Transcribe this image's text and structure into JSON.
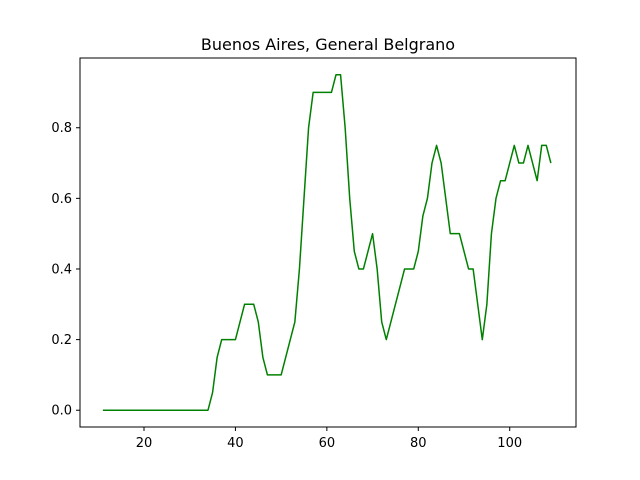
{
  "chart_data": {
    "type": "line",
    "title": "Buenos Aires, General Belgrano",
    "xlabel": "",
    "ylabel": "",
    "xlim": [
      6,
      114.5
    ],
    "ylim": [
      -0.0475,
      0.9975
    ],
    "x_ticks": [
      20,
      40,
      60,
      80,
      100
    ],
    "y_ticks": [
      0.0,
      0.2,
      0.4,
      0.6,
      0.8
    ],
    "x_tick_labels": [
      "20",
      "40",
      "60",
      "80",
      "100"
    ],
    "y_tick_labels": [
      "0.0",
      "0.2",
      "0.4",
      "0.6",
      "0.8"
    ],
    "grid": false,
    "legend": "none",
    "series": [
      {
        "color": "#008000",
        "x": [
          11,
          34,
          35,
          36,
          37,
          38,
          39,
          40,
          41,
          42,
          43,
          44,
          45,
          46,
          47,
          48,
          49,
          50,
          51,
          52,
          53,
          54,
          55,
          56,
          57,
          58,
          59,
          60,
          61,
          62,
          63,
          64,
          65,
          66,
          67,
          68,
          69,
          70,
          71,
          72,
          73,
          74,
          75,
          76,
          77,
          78,
          79,
          80,
          81,
          82,
          83,
          84,
          85,
          86,
          87,
          88,
          89,
          90,
          91,
          92,
          93,
          94,
          95,
          96,
          97,
          98,
          99,
          100,
          101,
          102,
          103,
          104,
          105,
          106,
          107,
          108,
          109
        ],
        "y": [
          0.0,
          0.0,
          0.05,
          0.15,
          0.2,
          0.2,
          0.2,
          0.2,
          0.25,
          0.3,
          0.3,
          0.3,
          0.25,
          0.15,
          0.1,
          0.1,
          0.1,
          0.1,
          0.15,
          0.2,
          0.25,
          0.4,
          0.6,
          0.8,
          0.9,
          0.9,
          0.9,
          0.9,
          0.9,
          0.95,
          0.95,
          0.8,
          0.6,
          0.45,
          0.4,
          0.4,
          0.45,
          0.5,
          0.4,
          0.25,
          0.2,
          0.25,
          0.3,
          0.35,
          0.4,
          0.4,
          0.4,
          0.45,
          0.55,
          0.6,
          0.7,
          0.75,
          0.7,
          0.6,
          0.5,
          0.5,
          0.5,
          0.45,
          0.4,
          0.4,
          0.3,
          0.2,
          0.3,
          0.5,
          0.6,
          0.65,
          0.65,
          0.7,
          0.75,
          0.7,
          0.7,
          0.75,
          0.7,
          0.65,
          0.75,
          0.75,
          0.7
        ]
      }
    ]
  }
}
